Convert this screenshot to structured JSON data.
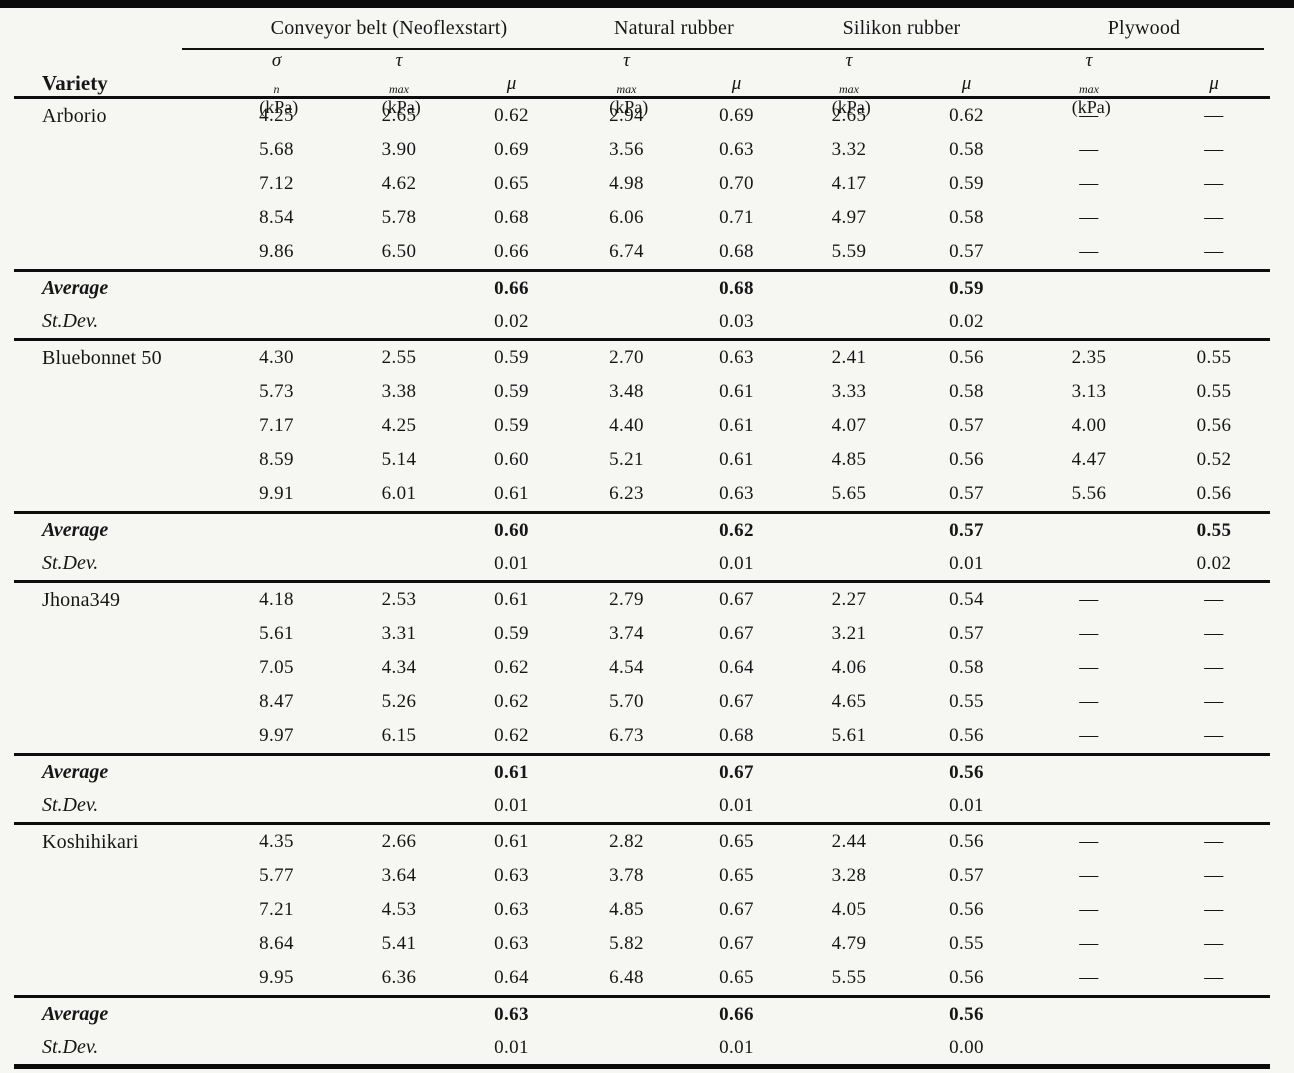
{
  "table": {
    "row_header": "Variety",
    "group_headers": [
      {
        "label": "Conveyor belt (Neoflexstart)",
        "span": 3
      },
      {
        "label": "Natural rubber",
        "span": 2
      },
      {
        "label": "Silikon rubber",
        "span": 2
      },
      {
        "label": "Plywood",
        "span": 2
      }
    ],
    "sub_columns": [
      {
        "sym": "σ",
        "sub": "n",
        "unit": "(kPa)"
      },
      {
        "sym": "τ",
        "sub": "max",
        "unit": "(kPa)"
      },
      {
        "sym": "μ",
        "sub": "",
        "unit": ""
      },
      {
        "sym": "τ",
        "sub": "max",
        "unit": "(kPa)"
      },
      {
        "sym": "μ",
        "sub": "",
        "unit": ""
      },
      {
        "sym": "τ",
        "sub": "max",
        "unit": "(kPa)"
      },
      {
        "sym": "μ",
        "sub": "",
        "unit": ""
      },
      {
        "sym": "τ",
        "sub": "max",
        "unit": "(kPa)"
      },
      {
        "sym": "μ",
        "sub": "",
        "unit": ""
      }
    ],
    "average_label": "Average",
    "stdev_label": "St.Dev.",
    "sections": [
      {
        "variety": "Arborio",
        "rows": [
          [
            "4.25",
            "2.65",
            "0.62",
            "2.94",
            "0.69",
            "2.65",
            "0.62",
            "—",
            "—"
          ],
          [
            "5.68",
            "3.90",
            "0.69",
            "3.56",
            "0.63",
            "3.32",
            "0.58",
            "—",
            "—"
          ],
          [
            "7.12",
            "4.62",
            "0.65",
            "4.98",
            "0.70",
            "4.17",
            "0.59",
            "—",
            "—"
          ],
          [
            "8.54",
            "5.78",
            "0.68",
            "6.06",
            "0.71",
            "4.97",
            "0.58",
            "—",
            "—"
          ],
          [
            "9.86",
            "6.50",
            "0.66",
            "6.74",
            "0.68",
            "5.59",
            "0.57",
            "—",
            "—"
          ]
        ],
        "average": [
          "",
          "",
          "0.66",
          "",
          "0.68",
          "",
          "0.59",
          "",
          ""
        ],
        "stdev": [
          "",
          "",
          "0.02",
          "",
          "0.03",
          "",
          "0.02",
          "",
          ""
        ]
      },
      {
        "variety": "Bluebonnet 50",
        "rows": [
          [
            "4.30",
            "2.55",
            "0.59",
            "2.70",
            "0.63",
            "2.41",
            "0.56",
            "2.35",
            "0.55"
          ],
          [
            "5.73",
            "3.38",
            "0.59",
            "3.48",
            "0.61",
            "3.33",
            "0.58",
            "3.13",
            "0.55"
          ],
          [
            "7.17",
            "4.25",
            "0.59",
            "4.40",
            "0.61",
            "4.07",
            "0.57",
            "4.00",
            "0.56"
          ],
          [
            "8.59",
            "5.14",
            "0.60",
            "5.21",
            "0.61",
            "4.85",
            "0.56",
            "4.47",
            "0.52"
          ],
          [
            "9.91",
            "6.01",
            "0.61",
            "6.23",
            "0.63",
            "5.65",
            "0.57",
            "5.56",
            "0.56"
          ]
        ],
        "average": [
          "",
          "",
          "0.60",
          "",
          "0.62",
          "",
          "0.57",
          "",
          "0.55"
        ],
        "stdev": [
          "",
          "",
          "0.01",
          "",
          "0.01",
          "",
          "0.01",
          "",
          "0.02"
        ]
      },
      {
        "variety": "Jhona349",
        "rows": [
          [
            "4.18",
            "2.53",
            "0.61",
            "2.79",
            "0.67",
            "2.27",
            "0.54",
            "—",
            "—"
          ],
          [
            "5.61",
            "3.31",
            "0.59",
            "3.74",
            "0.67",
            "3.21",
            "0.57",
            "—",
            "—"
          ],
          [
            "7.05",
            "4.34",
            "0.62",
            "4.54",
            "0.64",
            "4.06",
            "0.58",
            "—",
            "—"
          ],
          [
            "8.47",
            "5.26",
            "0.62",
            "5.70",
            "0.67",
            "4.65",
            "0.55",
            "—",
            "—"
          ],
          [
            "9.97",
            "6.15",
            "0.62",
            "6.73",
            "0.68",
            "5.61",
            "0.56",
            "—",
            "—"
          ]
        ],
        "average": [
          "",
          "",
          "0.61",
          "",
          "0.67",
          "",
          "0.56",
          "",
          ""
        ],
        "stdev": [
          "",
          "",
          "0.01",
          "",
          "0.01",
          "",
          "0.01",
          "",
          ""
        ]
      },
      {
        "variety": "Koshihikari",
        "rows": [
          [
            "4.35",
            "2.66",
            "0.61",
            "2.82",
            "0.65",
            "2.44",
            "0.56",
            "—",
            "—"
          ],
          [
            "5.77",
            "3.64",
            "0.63",
            "3.78",
            "0.65",
            "3.28",
            "0.57",
            "—",
            "—"
          ],
          [
            "7.21",
            "4.53",
            "0.63",
            "4.85",
            "0.67",
            "4.05",
            "0.56",
            "—",
            "—"
          ],
          [
            "8.64",
            "5.41",
            "0.63",
            "5.82",
            "0.67",
            "4.79",
            "0.55",
            "—",
            "—"
          ],
          [
            "9.95",
            "6.36",
            "0.64",
            "6.48",
            "0.65",
            "5.55",
            "0.56",
            "—",
            "—"
          ]
        ],
        "average": [
          "",
          "",
          "0.63",
          "",
          "0.66",
          "",
          "0.56",
          "",
          ""
        ],
        "stdev": [
          "",
          "",
          "0.01",
          "",
          "0.01",
          "",
          "0.00",
          "",
          ""
        ]
      }
    ]
  }
}
